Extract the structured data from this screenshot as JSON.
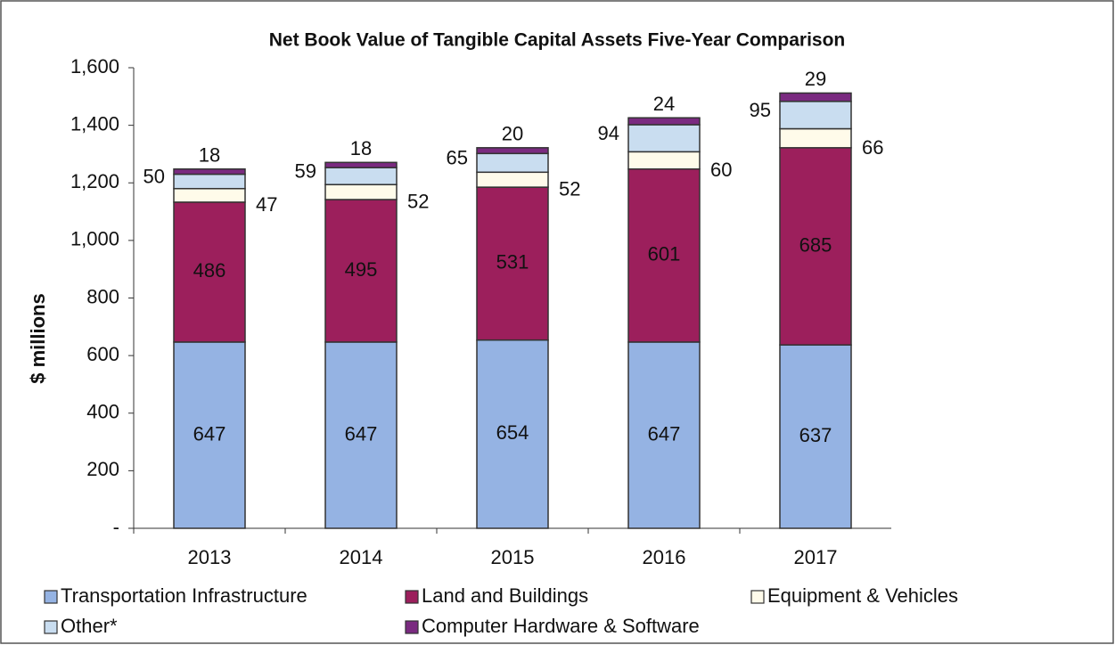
{
  "chart_data": {
    "type": "stacked_bar",
    "title": "Net Book Value of Tangible Capital Assets Five-Year Comparison",
    "y_label": "$ millions",
    "categories": [
      "2013",
      "2014",
      "2015",
      "2016",
      "2017"
    ],
    "series": [
      {
        "name": "Transportation Infrastructure",
        "color": "#95b3e3",
        "values": [
          647,
          647,
          654,
          647,
          637
        ]
      },
      {
        "name": "Land and Buildings",
        "color": "#9c1f5c",
        "values": [
          486,
          495,
          531,
          601,
          685
        ]
      },
      {
        "name": "Equipment & Vehicles",
        "color": "#fffbea",
        "values": [
          47,
          52,
          52,
          60,
          66
        ]
      },
      {
        "name": "Other*",
        "color": "#c9ddf0",
        "values": [
          50,
          59,
          65,
          94,
          95
        ]
      },
      {
        "name": "Computer Hardware & Software",
        "color": "#7a2a80",
        "values": [
          18,
          18,
          20,
          24,
          29
        ]
      }
    ],
    "ylim": [
      0,
      1600
    ],
    "yticks": [
      {
        "value": 0,
        "label": "-"
      },
      200,
      400,
      600,
      800,
      {
        "value": 1000,
        "label": "1,000"
      },
      {
        "value": 1200,
        "label": "1,200"
      },
      {
        "value": 1400,
        "label": "1,400"
      },
      {
        "value": 1600,
        "label": "1,600"
      }
    ],
    "grid": false
  }
}
